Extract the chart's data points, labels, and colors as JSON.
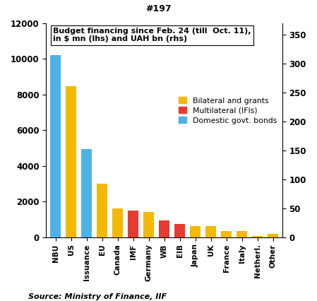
{
  "categories": [
    "NBU",
    "US",
    "Issuance",
    "EU",
    "Canada",
    "IMF",
    "Germany",
    "WB",
    "EIB",
    "Japan",
    "UK",
    "France",
    "Italy",
    "Netherl.",
    "Other"
  ],
  "values": [
    10200,
    8450,
    4950,
    3000,
    1600,
    1480,
    1420,
    950,
    750,
    620,
    610,
    350,
    350,
    80,
    200
  ],
  "colors": [
    "#4DB3E6",
    "#F5B800",
    "#4DB3E6",
    "#F5B800",
    "#F5B800",
    "#E63B2E",
    "#F5B800",
    "#E63B2E",
    "#E63B2E",
    "#F5B800",
    "#F5B800",
    "#F5B800",
    "#F5B800",
    "#F5B800",
    "#F5B800"
  ],
  "lhs_ylim": [
    0,
    12000
  ],
  "lhs_yticks": [
    0,
    2000,
    4000,
    6000,
    8000,
    10000,
    12000
  ],
  "rhs_ylim": [
    0,
    370
  ],
  "rhs_yticks": [
    0,
    50,
    100,
    150,
    200,
    250,
    300,
    350
  ],
  "annotation_text": "Budget financing since Feb. 24 (till  Oct. 11),\nin $ mn (lhs) and UAH bn (rhs)",
  "source_text": "Source: Ministry of Finance, IIF",
  "title": "#197",
  "legend": [
    {
      "label": "Bilateral and grants",
      "color": "#F5B800"
    },
    {
      "label": "Multilateral (IFIs)",
      "color": "#E63B2E"
    },
    {
      "label": "Domestic govt. bonds",
      "color": "#4DB3E6"
    }
  ]
}
